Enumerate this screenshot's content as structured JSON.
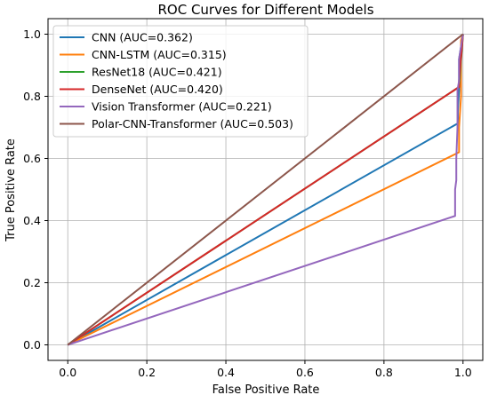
{
  "chart_data": {
    "type": "line",
    "title": "ROC Curves for Different Models",
    "xlabel": "False Positive Rate",
    "ylabel": "True Positive Rate",
    "xlim": [
      -0.05,
      1.05
    ],
    "ylim": [
      -0.05,
      1.05
    ],
    "xticks": [
      0.0,
      0.2,
      0.4,
      0.6,
      0.8,
      1.0
    ],
    "yticks": [
      0.0,
      0.2,
      0.4,
      0.6,
      0.8,
      1.0
    ],
    "xtick_labels": [
      "0.0",
      "0.2",
      "0.4",
      "0.6",
      "0.8",
      "1.0"
    ],
    "ytick_labels": [
      "0.0",
      "0.2",
      "0.4",
      "0.6",
      "0.8",
      "1.0"
    ],
    "grid": true,
    "legend_position": "upper-left",
    "diagonal": {
      "x": [
        0,
        1
      ],
      "y": [
        0,
        1
      ],
      "style": "dashed",
      "color": "#808080"
    },
    "series": [
      {
        "name": "CNN (AUC=0.362)",
        "color": "#1f77b4",
        "x": [
          0.0,
          0.987,
          0.987,
          0.99,
          0.99,
          1.0
        ],
        "y": [
          0.0,
          0.713,
          0.75,
          0.82,
          0.92,
          1.0
        ]
      },
      {
        "name": "CNN-LSTM (AUC=0.315)",
        "color": "#ff7f0e",
        "x": [
          0.0,
          0.99,
          0.99,
          0.995,
          0.995,
          1.0
        ],
        "y": [
          0.0,
          0.62,
          0.7,
          0.8,
          0.98,
          1.0
        ]
      },
      {
        "name": "ResNet18 (AUC=0.421)",
        "color": "#2ca02c",
        "x": [
          0.0,
          0.99,
          1.0
        ],
        "y": [
          0.0,
          0.83,
          1.0
        ]
      },
      {
        "name": "DenseNet (AUC=0.420)",
        "color": "#d62728",
        "x": [
          0.0,
          0.99,
          0.99,
          1.0
        ],
        "y": [
          0.0,
          0.83,
          0.85,
          1.0
        ]
      },
      {
        "name": "Vision Transformer (AUC=0.221)",
        "color": "#9467bd",
        "x": [
          0.0,
          0.98,
          0.98,
          0.983,
          0.983,
          0.986,
          0.986,
          0.99,
          0.99,
          1.0
        ],
        "y": [
          0.0,
          0.415,
          0.5,
          0.53,
          0.6,
          0.7,
          0.82,
          0.85,
          0.92,
          1.0
        ]
      },
      {
        "name": "Polar-CNN-Transformer (AUC=0.503)",
        "color": "#8c564b",
        "x": [
          0.0,
          1.0
        ],
        "y": [
          0.0,
          1.0
        ]
      }
    ]
  }
}
